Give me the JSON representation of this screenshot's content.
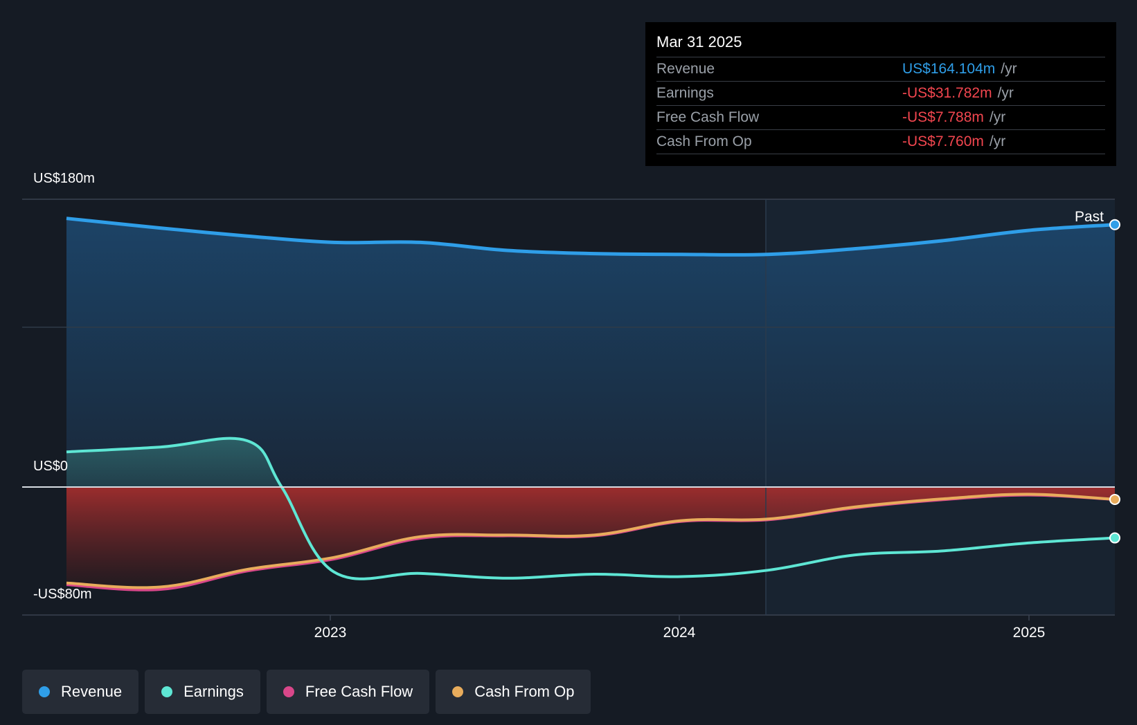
{
  "tooltip": {
    "date": "Mar 31 2025",
    "rows": [
      {
        "label": "Revenue",
        "value": "US$164.104m",
        "unit": "/yr"
      },
      {
        "label": "Earnings",
        "value": "-US$31.782m",
        "unit": "/yr"
      },
      {
        "label": "Free Cash Flow",
        "value": "-US$7.788m",
        "unit": "/yr"
      },
      {
        "label": "Cash From Op",
        "value": "-US$7.760m",
        "unit": "/yr"
      }
    ]
  },
  "legend": [
    {
      "label": "Revenue",
      "color": "#2f9ee8"
    },
    {
      "label": "Earnings",
      "color": "#5ee6d4"
    },
    {
      "label": "Free Cash Flow",
      "color": "#d9478a"
    },
    {
      "label": "Cash From Op",
      "color": "#e8ac5c"
    }
  ],
  "chart_data": {
    "type": "area",
    "title": "",
    "xlabel": "",
    "ylabel": "",
    "ylim": [
      -80,
      180
    ],
    "y_tick_labels": [
      {
        "value": 180,
        "label": "US$180m"
      },
      {
        "value": 0,
        "label": "US$0"
      },
      {
        "value": -80,
        "label": "-US$80m"
      }
    ],
    "x_ticks": [
      {
        "x": 2023.0,
        "label": "2023"
      },
      {
        "x": 2024.0,
        "label": "2024"
      },
      {
        "x": 2025.0,
        "label": "2025"
      }
    ],
    "xlim": [
      2022.1,
      2025.25
    ],
    "past_divider_x": 2024.25,
    "past_label": "Past",
    "series": [
      {
        "name": "Revenue",
        "color": "#2f9ee8",
        "x": [
          2022.23,
          2022.5,
          2022.75,
          2023.0,
          2023.25,
          2023.5,
          2023.75,
          2024.0,
          2024.25,
          2024.5,
          2024.75,
          2025.0,
          2025.25
        ],
        "y": [
          168,
          162,
          157,
          153,
          153,
          148,
          146,
          145.5,
          145.5,
          149,
          154,
          160.5,
          164.1
        ]
      },
      {
        "name": "Earnings",
        "color": "#5ee6d4",
        "x": [
          2022.23,
          2022.5,
          2022.75,
          2022.85,
          2023.0,
          2023.25,
          2023.5,
          2023.75,
          2024.0,
          2024.25,
          2024.5,
          2024.75,
          2025.0,
          2025.25
        ],
        "y": [
          22,
          25,
          29,
          0,
          -53,
          -54,
          -57,
          -54.5,
          -56,
          -52,
          -42.5,
          -40,
          -35,
          -31.8
        ]
      },
      {
        "name": "Free Cash Flow",
        "color": "#d9478a",
        "x": [
          2022.23,
          2022.5,
          2022.75,
          2023.0,
          2023.25,
          2023.5,
          2023.75,
          2024.0,
          2024.25,
          2024.5,
          2024.75,
          2025.0,
          2025.25
        ],
        "y": [
          -61,
          -64,
          -52.5,
          -45,
          -32,
          -30.5,
          -30.5,
          -21.5,
          -20.5,
          -13,
          -8,
          -5,
          -7.8
        ]
      },
      {
        "name": "Cash From Op",
        "color": "#e8ac5c",
        "x": [
          2022.23,
          2022.5,
          2022.75,
          2023.0,
          2023.25,
          2023.5,
          2023.75,
          2024.0,
          2024.25,
          2024.5,
          2024.75,
          2025.0,
          2025.25
        ],
        "y": [
          -60,
          -62.5,
          -51.5,
          -44,
          -31,
          -30,
          -30,
          -21,
          -20,
          -12.5,
          -7.5,
          -4.5,
          -7.76
        ]
      }
    ]
  }
}
